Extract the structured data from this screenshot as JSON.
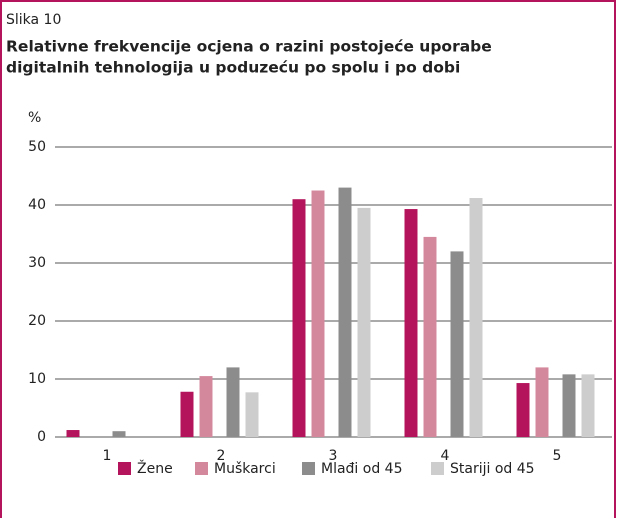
{
  "chart_data": {
    "type": "bar",
    "label": "Slika 10",
    "title": [
      "Relativne frekvencije ocjena o razini postojeće uporabe",
      "digitalnih tehnologija u poduzeću po spolu i po dobi"
    ],
    "ylabel": "%",
    "categories": [
      "1",
      "2",
      "3",
      "4",
      "5"
    ],
    "series": [
      {
        "name": "Žene",
        "color": "#b3145b",
        "values": [
          1.2,
          7.8,
          41,
          39.3,
          9.3
        ]
      },
      {
        "name": "Muškarci",
        "color": "#d4889c",
        "values": [
          0,
          10.5,
          42.5,
          34.5,
          12
        ]
      },
      {
        "name": "Mlađi od 45",
        "color": "#8c8c8c",
        "values": [
          1,
          12,
          43,
          32,
          10.8
        ]
      },
      {
        "name": "Stariji od 45",
        "color": "#cdcdcd",
        "values": [
          0,
          7.7,
          39.5,
          41.2,
          10.8
        ]
      }
    ],
    "ylim": [
      0,
      50
    ],
    "yticks": [
      0,
      10,
      20,
      30,
      40,
      50
    ],
    "grid": true
  }
}
